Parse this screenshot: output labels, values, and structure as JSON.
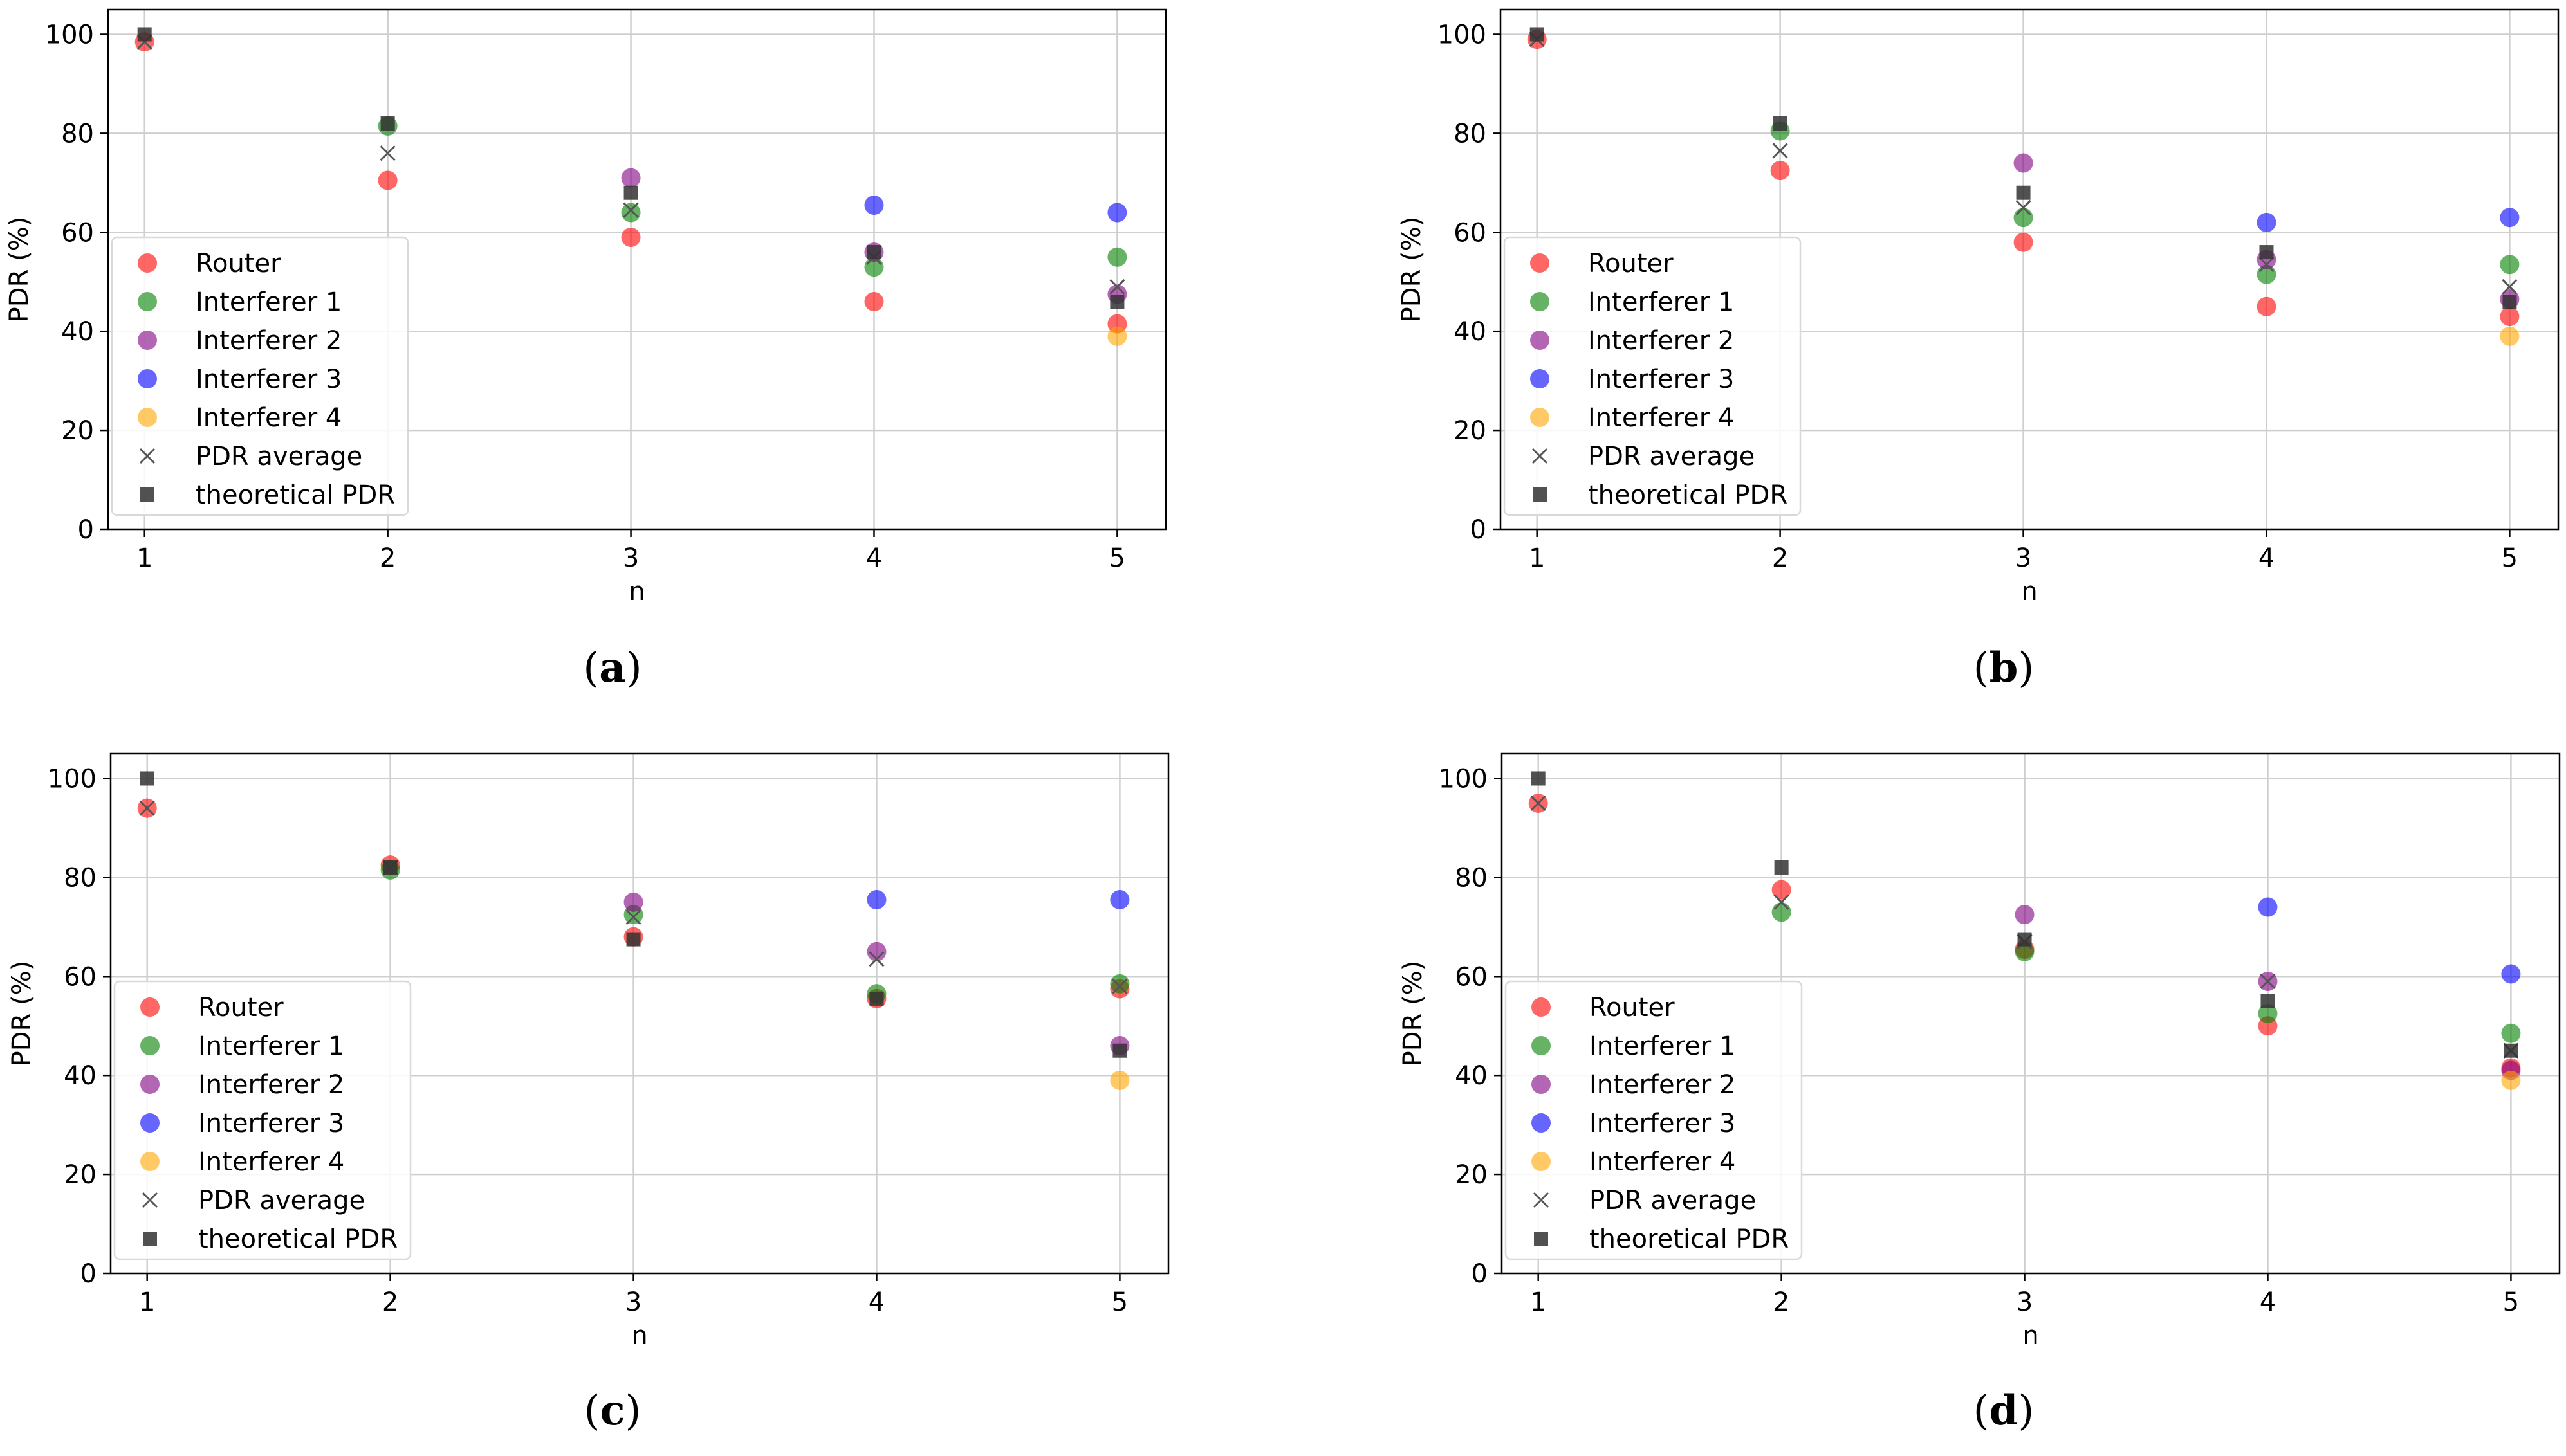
{
  "chart_data": [
    {
      "type": "scatter",
      "caption": "a",
      "xlabel": "n",
      "ylabel": "PDR (%)",
      "x": [
        1,
        2,
        3,
        4,
        5
      ],
      "xlim": [
        0.85,
        5.2
      ],
      "ylim": [
        0,
        105
      ],
      "yticks": [
        0,
        20,
        40,
        60,
        80,
        100
      ],
      "grid": true,
      "legend_position": "center-left",
      "series": [
        {
          "name": "Router",
          "marker": "circle",
          "color": "#ff0000",
          "values": [
            98.5,
            70.5,
            59,
            46,
            41.5
          ]
        },
        {
          "name": "Interferer 1",
          "marker": "circle",
          "color": "#008000",
          "values": [
            null,
            81.5,
            64,
            53,
            55
          ]
        },
        {
          "name": "Interferer 2",
          "marker": "circle",
          "color": "#800080",
          "values": [
            null,
            null,
            71,
            56,
            47.5
          ]
        },
        {
          "name": "Interferer 3",
          "marker": "circle",
          "color": "#0000ff",
          "values": [
            null,
            null,
            null,
            65.5,
            64
          ]
        },
        {
          "name": "Interferer 4",
          "marker": "circle",
          "color": "#ffa500",
          "values": [
            null,
            null,
            null,
            null,
            39
          ]
        },
        {
          "name": "PDR average",
          "marker": "x",
          "color": "#555555",
          "values": [
            98.5,
            76,
            64.5,
            55,
            49
          ]
        },
        {
          "name": "theoretical PDR",
          "marker": "square",
          "color": "#333333",
          "values": [
            100,
            82,
            68,
            56,
            46
          ]
        }
      ]
    },
    {
      "type": "scatter",
      "caption": "b",
      "xlabel": "n",
      "ylabel": "PDR (%)",
      "x": [
        1,
        2,
        3,
        4,
        5
      ],
      "xlim": [
        0.85,
        5.2
      ],
      "ylim": [
        0,
        105
      ],
      "yticks": [
        0,
        20,
        40,
        60,
        80,
        100
      ],
      "grid": true,
      "legend_position": "center-left",
      "series": [
        {
          "name": "Router",
          "marker": "circle",
          "color": "#ff0000",
          "values": [
            99,
            72.5,
            58,
            45,
            43
          ]
        },
        {
          "name": "Interferer 1",
          "marker": "circle",
          "color": "#008000",
          "values": [
            null,
            80.5,
            63,
            51.5,
            53.5
          ]
        },
        {
          "name": "Interferer 2",
          "marker": "circle",
          "color": "#800080",
          "values": [
            null,
            null,
            74,
            54.5,
            46.5
          ]
        },
        {
          "name": "Interferer 3",
          "marker": "circle",
          "color": "#0000ff",
          "values": [
            null,
            null,
            null,
            62,
            63
          ]
        },
        {
          "name": "Interferer 4",
          "marker": "circle",
          "color": "#ffa500",
          "values": [
            null,
            null,
            null,
            null,
            39
          ]
        },
        {
          "name": "PDR average",
          "marker": "x",
          "color": "#555555",
          "values": [
            99,
            76.5,
            65,
            53.5,
            49
          ]
        },
        {
          "name": "theoretical PDR",
          "marker": "square",
          "color": "#333333",
          "values": [
            100,
            82,
            68,
            56,
            46
          ]
        }
      ]
    },
    {
      "type": "scatter",
      "caption": "c",
      "xlabel": "n",
      "ylabel": "PDR (%)",
      "x": [
        1,
        2,
        3,
        4,
        5
      ],
      "xlim": [
        0.85,
        5.2
      ],
      "ylim": [
        0,
        105
      ],
      "yticks": [
        0,
        20,
        40,
        60,
        80,
        100
      ],
      "grid": true,
      "legend_position": "center-left",
      "series": [
        {
          "name": "Router",
          "marker": "circle",
          "color": "#ff0000",
          "values": [
            94,
            82.5,
            68,
            55.5,
            57.5
          ]
        },
        {
          "name": "Interferer 1",
          "marker": "circle",
          "color": "#008000",
          "values": [
            null,
            81.5,
            72.5,
            56.5,
            58.5
          ]
        },
        {
          "name": "Interferer 2",
          "marker": "circle",
          "color": "#800080",
          "values": [
            null,
            null,
            75,
            65,
            46
          ]
        },
        {
          "name": "Interferer 3",
          "marker": "circle",
          "color": "#0000ff",
          "values": [
            null,
            null,
            null,
            75.5,
            75.5
          ]
        },
        {
          "name": "Interferer 4",
          "marker": "circle",
          "color": "#ffa500",
          "values": [
            null,
            null,
            null,
            null,
            39
          ]
        },
        {
          "name": "PDR average",
          "marker": "x",
          "color": "#555555",
          "values": [
            94,
            82,
            72,
            63.5,
            58
          ]
        },
        {
          "name": "theoretical PDR",
          "marker": "square",
          "color": "#333333",
          "values": [
            100,
            82,
            67.5,
            55.5,
            45
          ]
        }
      ]
    },
    {
      "type": "scatter",
      "caption": "d",
      "xlabel": "n",
      "ylabel": "PDR (%)",
      "x": [
        1,
        2,
        3,
        4,
        5
      ],
      "xlim": [
        0.85,
        5.2
      ],
      "ylim": [
        0,
        105
      ],
      "yticks": [
        0,
        20,
        40,
        60,
        80,
        100
      ],
      "grid": true,
      "legend_position": "center-left",
      "series": [
        {
          "name": "Router",
          "marker": "circle",
          "color": "#ff0000",
          "values": [
            95,
            77.5,
            65.5,
            50,
            41.5
          ]
        },
        {
          "name": "Interferer 1",
          "marker": "circle",
          "color": "#008000",
          "values": [
            null,
            73,
            65,
            52.5,
            48.5
          ]
        },
        {
          "name": "Interferer 2",
          "marker": "circle",
          "color": "#800080",
          "values": [
            null,
            null,
            72.5,
            59,
            41
          ]
        },
        {
          "name": "Interferer 3",
          "marker": "circle",
          "color": "#0000ff",
          "values": [
            null,
            null,
            null,
            74,
            60.5
          ]
        },
        {
          "name": "Interferer 4",
          "marker": "circle",
          "color": "#ffa500",
          "values": [
            null,
            null,
            null,
            null,
            39
          ]
        },
        {
          "name": "PDR average",
          "marker": "x",
          "color": "#555555",
          "values": [
            95,
            75,
            67,
            59,
            45
          ]
        },
        {
          "name": "theoretical PDR",
          "marker": "square",
          "color": "#333333",
          "values": [
            100,
            82,
            67.5,
            55,
            45
          ]
        }
      ]
    }
  ]
}
